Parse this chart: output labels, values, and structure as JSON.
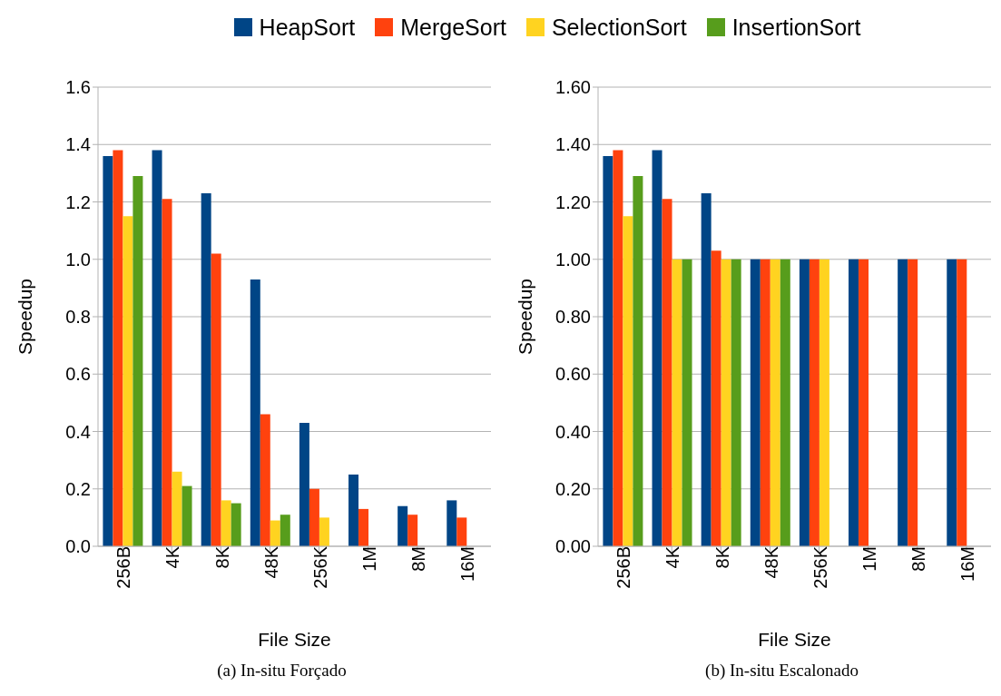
{
  "chart_data": [
    {
      "type": "bar",
      "title": "(a) In-situ Forçado",
      "xlabel": "File Size",
      "ylabel": "Speedup",
      "categories": [
        "256B",
        "4K",
        "8K",
        "48K",
        "256K",
        "1M",
        "8M",
        "16M"
      ],
      "series": [
        {
          "name": "HeapSort",
          "color": "#004586",
          "values": [
            1.36,
            1.38,
            1.23,
            0.93,
            0.43,
            0.25,
            0.14,
            0.16
          ]
        },
        {
          "name": "MergeSort",
          "color": "#ff420e",
          "values": [
            1.38,
            1.21,
            1.02,
            0.46,
            0.2,
            0.13,
            0.11,
            0.1
          ]
        },
        {
          "name": "SelectionSort",
          "color": "#ffd320",
          "values": [
            1.15,
            0.26,
            0.16,
            0.09,
            0.1,
            null,
            null,
            null
          ]
        },
        {
          "name": "InsertionSort",
          "color": "#579d1c",
          "values": [
            1.29,
            0.21,
            0.15,
            0.11,
            null,
            null,
            null,
            null
          ]
        }
      ],
      "ylim": [
        0,
        1.6
      ],
      "yticks": [
        {
          "value": 0,
          "label": "0.0"
        },
        {
          "value": 0.2,
          "label": "0.2"
        },
        {
          "value": 0.4,
          "label": "0.4"
        },
        {
          "value": 0.6,
          "label": "0.6"
        },
        {
          "value": 0.8,
          "label": "0.8"
        },
        {
          "value": 1,
          "label": "1.0"
        },
        {
          "value": 1.2,
          "label": "1.2"
        },
        {
          "value": 1.4,
          "label": "1.4"
        },
        {
          "value": 1.6,
          "label": "1.6"
        }
      ],
      "grid": "y",
      "legend": "top"
    },
    {
      "type": "bar",
      "title": "(b) In-situ Escalonado",
      "xlabel": "File Size",
      "ylabel": "Speedup",
      "categories": [
        "256B",
        "4K",
        "8K",
        "48K",
        "256K",
        "1M",
        "8M",
        "16M"
      ],
      "series": [
        {
          "color": "#004586",
          "values": [
            1.36,
            1.38,
            1.23,
            1,
            1,
            1,
            1,
            1
          ]
        },
        {
          "color": "#ff420e",
          "values": [
            1.38,
            1.21,
            1.03,
            1,
            1,
            1,
            1,
            1
          ]
        },
        {
          "color": "#ffd320",
          "values": [
            1.15,
            1,
            1,
            1,
            1,
            null,
            null,
            null
          ]
        },
        {
          "color": "#579d1c",
          "values": [
            1.29,
            1,
            1,
            1,
            null,
            null,
            null,
            null
          ]
        }
      ],
      "ylim": [
        0,
        1.6
      ],
      "yticks": [
        {
          "value": 0,
          "label": "0.00"
        },
        {
          "value": 0.2,
          "label": "0.20"
        },
        {
          "value": 0.4,
          "label": "0.40"
        },
        {
          "value": 0.6,
          "label": "0.60"
        },
        {
          "value": 0.8,
          "label": "0.80"
        },
        {
          "value": 1,
          "label": "1.00"
        },
        {
          "value": 1.2,
          "label": "1.20"
        },
        {
          "value": 1.4,
          "label": "1.40"
        },
        {
          "value": 1.6,
          "label": "1.60"
        }
      ],
      "grid": "y"
    }
  ]
}
